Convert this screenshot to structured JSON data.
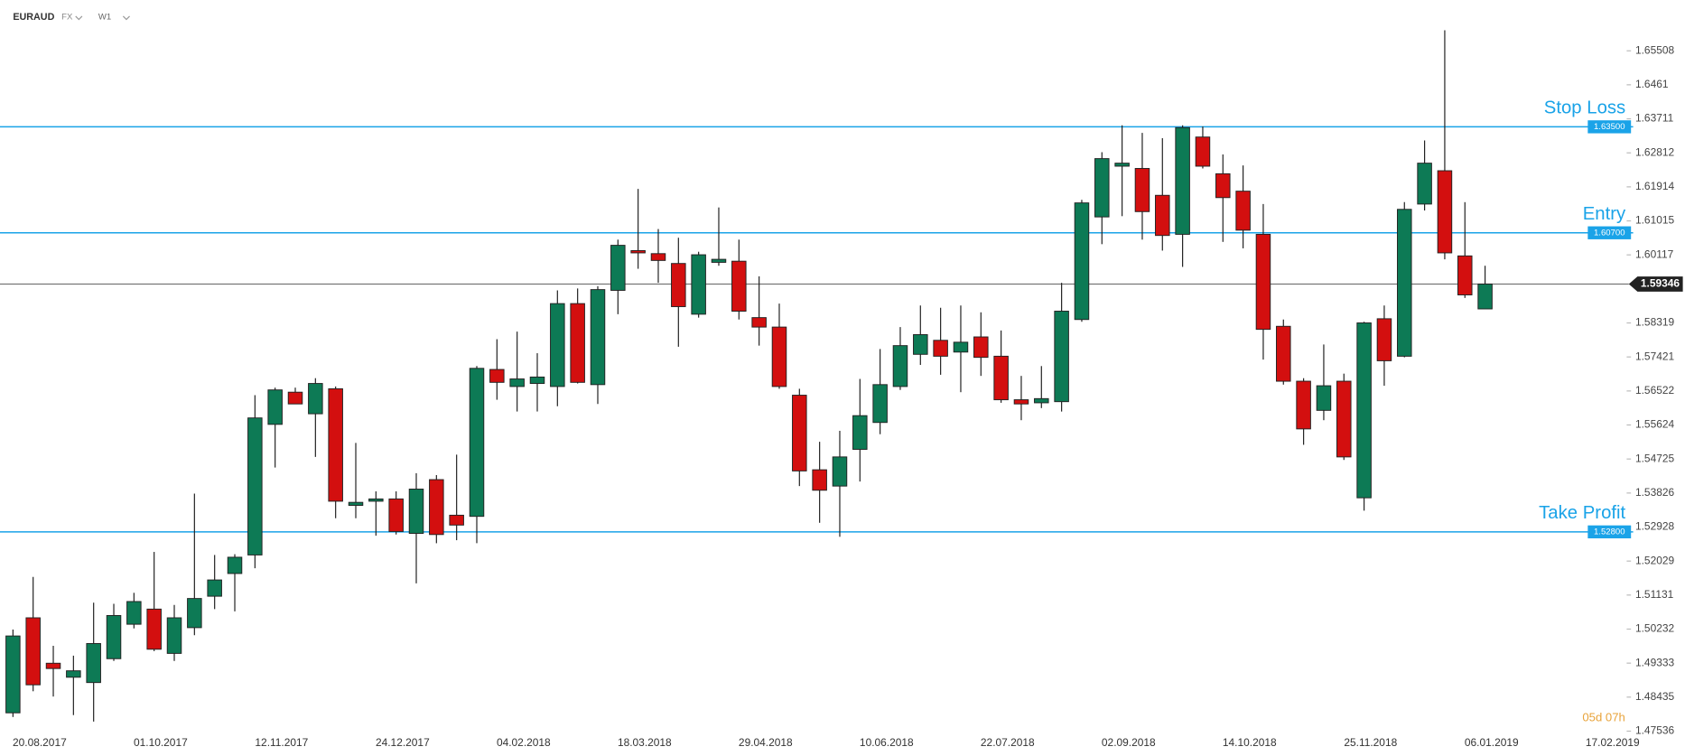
{
  "header": {
    "symbol": "EURAUD",
    "market": "FX",
    "interval": "W1"
  },
  "timer": "05d 07h",
  "chart_data": {
    "type": "candlestick",
    "categories": [
      null,
      "20.08.2017",
      null,
      null,
      null,
      null,
      null,
      "01.10.2017",
      null,
      null,
      null,
      null,
      null,
      "12.11.2017",
      null,
      null,
      null,
      null,
      null,
      "24.12.2017",
      null,
      null,
      null,
      null,
      null,
      "04.02.2018",
      null,
      null,
      null,
      null,
      null,
      "18.03.2018",
      null,
      null,
      null,
      null,
      null,
      "29.04.2018",
      null,
      null,
      null,
      null,
      null,
      "10.06.2018",
      null,
      null,
      null,
      null,
      null,
      "22.07.2018",
      null,
      null,
      null,
      null,
      null,
      "02.09.2018",
      null,
      null,
      null,
      null,
      null,
      "14.10.2018",
      null,
      null,
      null,
      null,
      null,
      "25.11.2018",
      null,
      null,
      null,
      null,
      null,
      "06.01.2019",
      null,
      null,
      null,
      null,
      null,
      "17.02.2019"
    ],
    "open": [
      1.4802,
      1.5053,
      1.4933,
      1.4896,
      1.4882,
      1.4945,
      1.5036,
      1.5076,
      1.4959,
      1.5027,
      1.511,
      1.517,
      1.5219,
      1.5564,
      1.5649,
      1.5592,
      1.5658,
      1.535,
      1.5361,
      1.5367,
      1.5276,
      1.5418,
      1.5324,
      1.5321,
      1.5709,
      1.5664,
      1.5672,
      1.5664,
      1.5883,
      1.5669,
      1.5918,
      1.6023,
      1.6015,
      1.5989,
      1.5855,
      1.5992,
      1.5995,
      1.5846,
      1.5821,
      1.5641,
      1.5444,
      1.5401,
      1.5498,
      1.5569,
      1.5664,
      1.5749,
      1.5786,
      1.5755,
      1.5795,
      1.5744,
      1.5629,
      1.5621,
      1.5624,
      1.5841,
      1.6112,
      1.6246,
      1.624,
      1.6169,
      1.6066,
      1.6323,
      1.6226,
      1.618,
      1.6066,
      1.5823,
      1.5678,
      1.5601,
      1.5678,
      1.537,
      1.5843,
      1.5744,
      1.6146,
      1.6234,
      1.6009,
      1.5869,
      null,
      null,
      null,
      null,
      null,
      null
    ],
    "high": [
      1.5022,
      1.5161,
      1.4979,
      1.4953,
      1.5093,
      1.509,
      1.5119,
      1.5227,
      1.5087,
      1.5381,
      1.5219,
      1.5221,
      1.5641,
      1.5661,
      1.5661,
      1.5686,
      1.5664,
      1.5515,
      1.5387,
      1.5387,
      1.5435,
      1.543,
      1.5484,
      1.5718,
      1.5789,
      1.5809,
      1.5752,
      1.5918,
      1.5923,
      1.5929,
      1.6052,
      1.6186,
      1.608,
      1.6057,
      1.602,
      1.6137,
      1.6052,
      1.5955,
      1.5883,
      1.5658,
      1.5518,
      1.5547,
      1.5684,
      1.5763,
      1.5821,
      1.5878,
      1.5872,
      1.5878,
      1.586,
      1.5812,
      1.5692,
      1.5718,
      1.5938,
      1.6157,
      1.6283,
      1.6354,
      1.6334,
      1.632,
      1.6354,
      1.6351,
      1.6277,
      1.6248,
      1.6146,
      1.5841,
      1.5686,
      1.5775,
      1.5698,
      1.5835,
      1.5878,
      1.6151,
      1.6314,
      1.6605,
      1.6151,
      1.5983,
      null,
      null,
      null,
      null,
      null,
      null
    ],
    "low": [
      1.4791,
      1.4859,
      1.4845,
      1.4796,
      1.4779,
      1.4939,
      1.5025,
      1.4965,
      1.4939,
      1.5007,
      1.5076,
      1.507,
      1.5184,
      1.545,
      1.5618,
      1.5478,
      1.5316,
      1.5316,
      1.527,
      1.5273,
      1.5144,
      1.525,
      1.5258,
      1.525,
      1.5629,
      1.5598,
      1.5598,
      1.5612,
      1.5672,
      1.5618,
      1.5855,
      1.5975,
      1.5938,
      1.5769,
      1.5846,
      1.5983,
      1.5841,
      1.5772,
      1.5658,
      1.5401,
      1.5304,
      1.5267,
      1.5413,
      1.5538,
      1.5655,
      1.5721,
      1.5695,
      1.5649,
      1.5692,
      1.5621,
      1.5575,
      1.5607,
      1.5598,
      1.5835,
      1.604,
      1.6114,
      1.6052,
      1.6023,
      1.598,
      1.624,
      1.6046,
      1.6029,
      1.5735,
      1.5669,
      1.551,
      1.5575,
      1.547,
      1.5336,
      1.5666,
      1.5741,
      1.6129,
      1.6,
      1.5898,
      1.5869,
      null,
      null,
      null,
      null,
      null,
      null
    ],
    "close": [
      1.5005,
      1.4876,
      1.4919,
      1.4913,
      1.4985,
      1.5059,
      1.5096,
      1.497,
      1.5053,
      1.5104,
      1.5153,
      1.5213,
      1.5581,
      1.5655,
      1.5618,
      1.5672,
      1.5361,
      1.5358,
      1.5367,
      1.5281,
      1.5393,
      1.5273,
      1.5298,
      1.5712,
      1.5675,
      1.5684,
      1.5689,
      1.5883,
      1.5675,
      1.592,
      1.6037,
      1.6017,
      1.5997,
      1.5875,
      1.6012,
      1.6,
      1.5863,
      1.5821,
      1.5664,
      1.5441,
      1.539,
      1.5478,
      1.5587,
      1.5669,
      1.5772,
      1.5801,
      1.5744,
      1.5781,
      1.5741,
      1.5629,
      1.5618,
      1.5632,
      1.5863,
      1.6149,
      1.6266,
      1.6254,
      1.6126,
      1.6063,
      1.6348,
      1.6246,
      1.6163,
      1.6077,
      1.5815,
      1.5678,
      1.5552,
      1.5666,
      1.5478,
      1.5832,
      1.5732,
      1.6132,
      1.6254,
      1.6017,
      1.5906,
      1.59346,
      null,
      null,
      null,
      null,
      null,
      null
    ],
    "up_color": "#0d7a55",
    "down_color": "#d30f0f",
    "ylim": [
      1.4745,
      1.6685
    ],
    "yticks": [
      1.47536,
      1.48435,
      1.49333,
      1.50232,
      1.51131,
      1.52029,
      1.52928,
      1.53826,
      1.54725,
      1.55624,
      1.56522,
      1.57421,
      1.58319,
      1.60117,
      1.61015,
      1.61914,
      1.62812,
      1.63711,
      1.6461,
      1.65508
    ],
    "levels": [
      {
        "name": "Stop Loss",
        "value": 1.635,
        "label": "1.63500"
      },
      {
        "name": "Entry",
        "value": 1.607,
        "label": "1.60700"
      },
      {
        "name": "Take Profit",
        "value": 1.528,
        "label": "1.52800"
      }
    ],
    "level_color": "#1aa3e8",
    "current_price": 1.59346
  }
}
